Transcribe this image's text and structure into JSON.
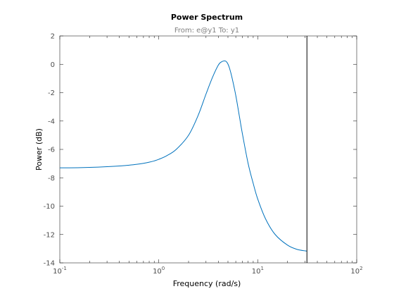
{
  "chart_data": {
    "type": "line",
    "title": "Power Spectrum",
    "subtitle": "From: e@y1  To: y1",
    "xlabel": "Frequency  (rad/s)",
    "ylabel": "Power (dB)",
    "xscale": "log",
    "xlim": [
      0.1,
      100
    ],
    "ylim": [
      -14,
      2
    ],
    "grid": false,
    "legend": "none",
    "x_ticks": [
      {
        "value": 0.1,
        "base": "10",
        "exp": "-1"
      },
      {
        "value": 1,
        "base": "10",
        "exp": "0"
      },
      {
        "value": 10,
        "base": "10",
        "exp": "1"
      },
      {
        "value": 100,
        "base": "10",
        "exp": "2"
      }
    ],
    "y_ticks": [
      2,
      0,
      -2,
      -4,
      -6,
      -8,
      -10,
      -12,
      -14
    ],
    "y_tick_labels": [
      "2",
      "0",
      "-2",
      "-4",
      "-6",
      "-8",
      "-10",
      "-12",
      "-14"
    ],
    "nyquist_line_x": 31.4,
    "series": [
      {
        "color": "#0072bd",
        "x": [
          0.1,
          0.15,
          0.2,
          0.3,
          0.4,
          0.5,
          0.6,
          0.7,
          0.8,
          0.9,
          1.0,
          1.2,
          1.5,
          2.0,
          2.5,
          3.0,
          3.5,
          4.0,
          4.3,
          4.6,
          4.8,
          5.0,
          5.2,
          5.5,
          6.0,
          6.5,
          7.0,
          8.0,
          9.0,
          10,
          12,
          15,
          20,
          25,
          30,
          31.4
        ],
        "y": [
          -7.3,
          -7.29,
          -7.27,
          -7.22,
          -7.17,
          -7.11,
          -7.05,
          -6.98,
          -6.9,
          -6.81,
          -6.7,
          -6.45,
          -6.0,
          -5.0,
          -3.6,
          -2.1,
          -0.9,
          -0.05,
          0.17,
          0.24,
          0.2,
          0.02,
          -0.3,
          -0.95,
          -2.2,
          -3.6,
          -4.9,
          -7.0,
          -8.4,
          -9.5,
          -10.9,
          -12.0,
          -12.75,
          -13.05,
          -13.15,
          -13.17
        ]
      }
    ]
  }
}
